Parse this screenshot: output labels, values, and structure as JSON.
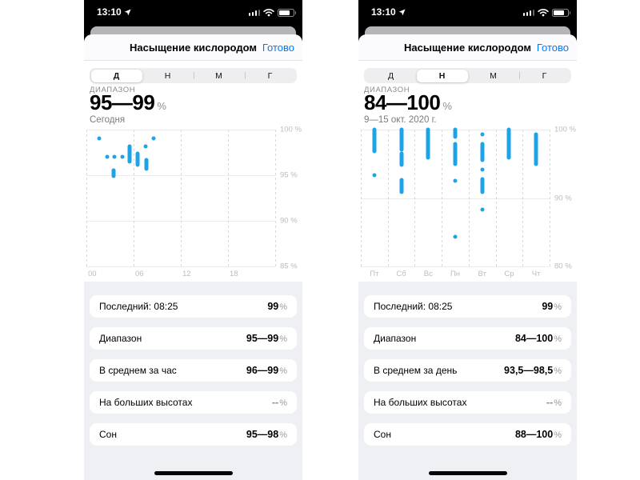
{
  "colors": {
    "accent_blue": "#007aff",
    "point_blue": "#1ea3e6"
  },
  "phones": [
    {
      "status": {
        "time": "13:10"
      },
      "nav": {
        "title": "Насыщение кислородом",
        "done": "Готово"
      },
      "segments": {
        "options": [
          "Д",
          "Н",
          "М",
          "Г"
        ],
        "selected": 0
      },
      "summary": {
        "caption": "ДИАПАЗОН",
        "range": "95—99",
        "unit": "%",
        "subtitle": "Сегодня"
      },
      "chart_data": {
        "type": "scatter",
        "title": "Насыщение кислородом — Сегодня",
        "ylabel": "%",
        "ylim": [
          85,
          100
        ],
        "yticks": [
          {
            "v": 100,
            "label": "100 %"
          },
          {
            "v": 95,
            "label": "95 %"
          },
          {
            "v": 90,
            "label": "90 %"
          },
          {
            "v": 85,
            "label": "85 %"
          }
        ],
        "xdomain": [
          0,
          24
        ],
        "xgrid": [
          0,
          6,
          12,
          18,
          24
        ],
        "label_anchor": "start",
        "xlabels": [
          {
            "x": 0,
            "label": "00"
          },
          {
            "x": 6,
            "label": "06"
          },
          {
            "x": 12,
            "label": "12"
          },
          {
            "x": 18,
            "label": "18"
          }
        ],
        "points": [
          {
            "x": 1.6,
            "lo": 99,
            "hi": 99
          },
          {
            "x": 2.6,
            "lo": 97,
            "hi": 97
          },
          {
            "x": 3.6,
            "lo": 97,
            "hi": 97
          },
          {
            "x": 3.5,
            "lo": 94.9,
            "hi": 95.5
          },
          {
            "x": 4.6,
            "lo": 97,
            "hi": 97
          },
          {
            "x": 5.5,
            "lo": 96.5,
            "hi": 98.2
          },
          {
            "x": 6.5,
            "lo": 96.1,
            "hi": 97.4
          },
          {
            "x": 7.5,
            "lo": 98.2,
            "hi": 98.2
          },
          {
            "x": 7.6,
            "lo": 95.7,
            "hi": 96.7
          },
          {
            "x": 8.5,
            "lo": 99,
            "hi": 99
          }
        ]
      },
      "stats": [
        {
          "label": "Последний: 08:25",
          "value": "99",
          "unit": "%"
        },
        {
          "label": "Диапазон",
          "value": "95—99",
          "unit": "%"
        },
        {
          "label": "В среднем за час",
          "value": "96—99",
          "unit": "%"
        },
        {
          "label": "На больших высотах",
          "value": "--",
          "unit": "%"
        },
        {
          "label": "Сон",
          "value": "95—98",
          "unit": "%"
        }
      ]
    },
    {
      "status": {
        "time": "13:10"
      },
      "nav": {
        "title": "Насыщение кислородом",
        "done": "Готово"
      },
      "segments": {
        "options": [
          "Д",
          "Н",
          "М",
          "Г"
        ],
        "selected": 1
      },
      "summary": {
        "caption": "ДИАПАЗОН",
        "range": "84—100",
        "unit": "%",
        "subtitle": "9—15 окт. 2020 г."
      },
      "chart_data": {
        "type": "scatter",
        "title": "Насыщение кислородом — 9—15 окт. 2020 г.",
        "ylabel": "%",
        "ylim": [
          80,
          100
        ],
        "yticks": [
          {
            "v": 100,
            "label": "100 %"
          },
          {
            "v": 90,
            "label": "90 %"
          },
          {
            "v": 80,
            "label": "80 %"
          }
        ],
        "xdomain": [
          0,
          7
        ],
        "xgrid": [
          0,
          1,
          2,
          3,
          4,
          5,
          6,
          7
        ],
        "label_anchor": "middle",
        "xlabels": [
          {
            "x": 0.5,
            "label": "Пт"
          },
          {
            "x": 1.5,
            "label": "Сб"
          },
          {
            "x": 2.5,
            "label": "Вс"
          },
          {
            "x": 3.5,
            "label": "Пн"
          },
          {
            "x": 4.5,
            "label": "Вт"
          },
          {
            "x": 5.5,
            "label": "Ср"
          },
          {
            "x": 6.5,
            "label": "Чт"
          }
        ],
        "points": [
          {
            "x": 0.5,
            "lo": 96.9,
            "hi": 100
          },
          {
            "x": 0.5,
            "lo": 93.3,
            "hi": 93.3
          },
          {
            "x": 1.5,
            "lo": 97.1,
            "hi": 100
          },
          {
            "x": 1.5,
            "lo": 94.8,
            "hi": 96.5
          },
          {
            "x": 1.5,
            "lo": 90.9,
            "hi": 92.6
          },
          {
            "x": 2.5,
            "lo": 95.9,
            "hi": 100
          },
          {
            "x": 3.5,
            "lo": 98.9,
            "hi": 100
          },
          {
            "x": 3.5,
            "lo": 95.0,
            "hi": 97.9
          },
          {
            "x": 3.5,
            "lo": 92.5,
            "hi": 92.5
          },
          {
            "x": 3.5,
            "lo": 84.3,
            "hi": 84.3
          },
          {
            "x": 4.5,
            "lo": 99.3,
            "hi": 99.3
          },
          {
            "x": 4.5,
            "lo": 95.6,
            "hi": 97.9
          },
          {
            "x": 4.5,
            "lo": 94.2,
            "hi": 94.2
          },
          {
            "x": 4.5,
            "lo": 90.9,
            "hi": 92.7
          },
          {
            "x": 4.5,
            "lo": 88.3,
            "hi": 88.3
          },
          {
            "x": 5.5,
            "lo": 95.9,
            "hi": 100
          },
          {
            "x": 6.5,
            "lo": 95.0,
            "hi": 99.3
          }
        ]
      },
      "stats": [
        {
          "label": "Последний: 08:25",
          "value": "99",
          "unit": "%"
        },
        {
          "label": "Диапазон",
          "value": "84—100",
          "unit": "%"
        },
        {
          "label": "В среднем за день",
          "value": "93,5—98,5",
          "unit": "%"
        },
        {
          "label": "На больших высотах",
          "value": "--",
          "unit": "%"
        },
        {
          "label": "Сон",
          "value": "88—100",
          "unit": "%"
        }
      ]
    }
  ]
}
